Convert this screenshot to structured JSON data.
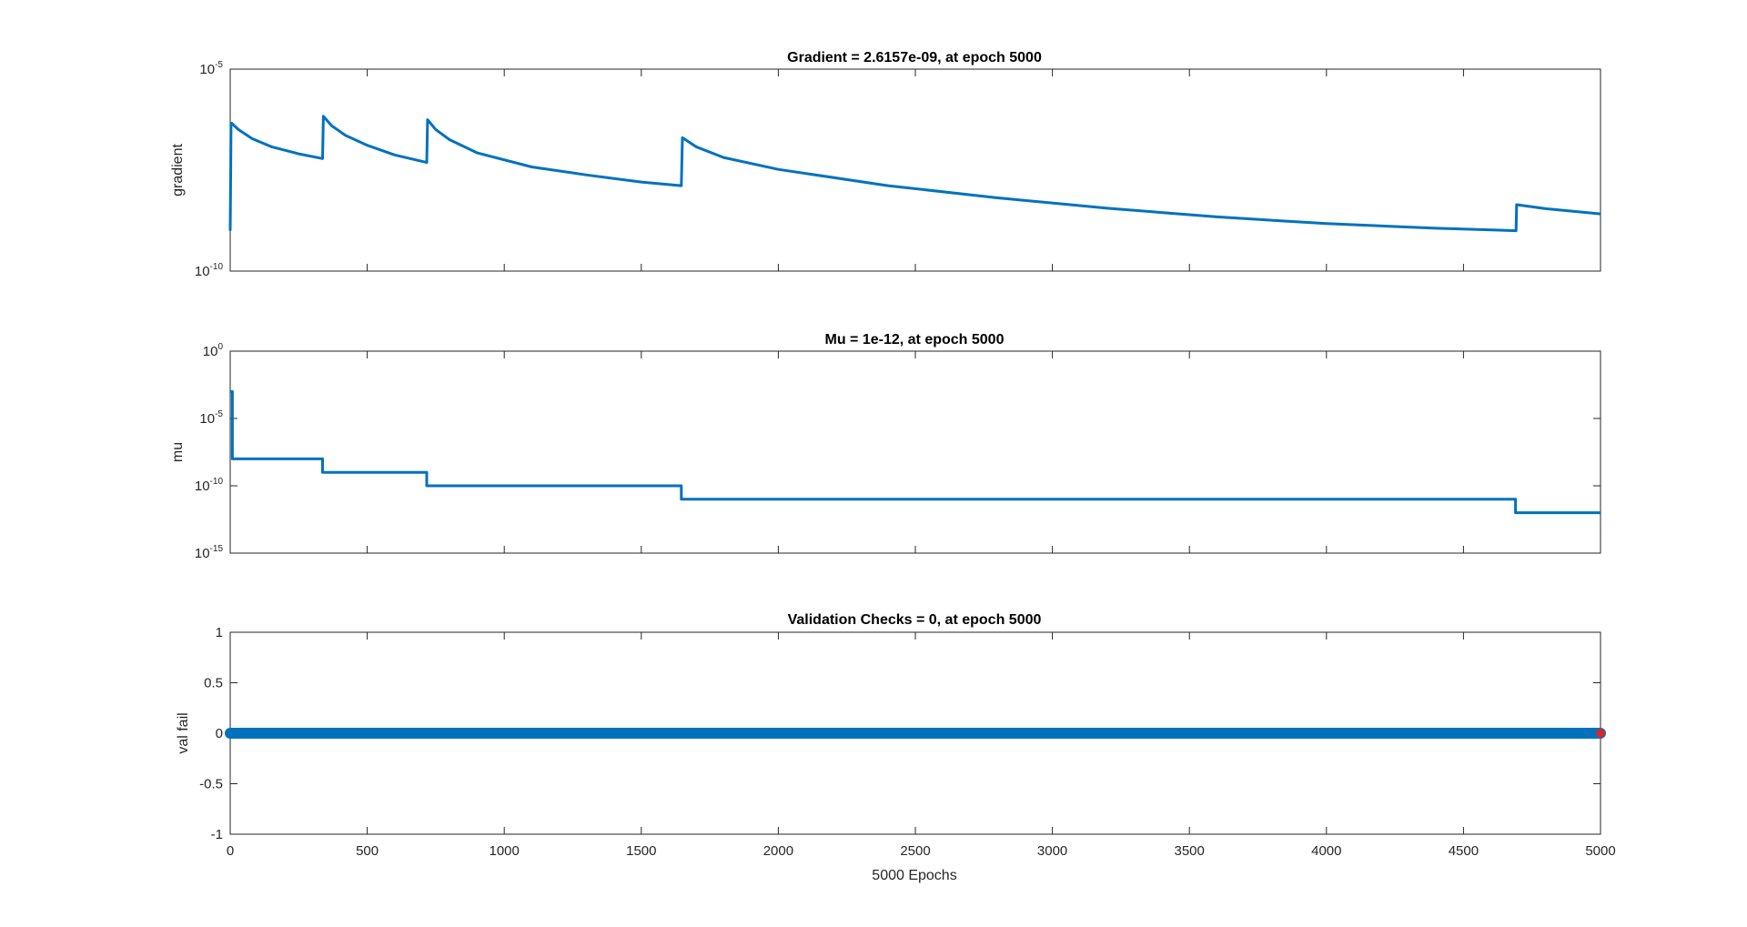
{
  "colors": {
    "line": "#0072BD",
    "marker_end": "#D62728",
    "axes": "#262626"
  },
  "chart_data": [
    {
      "type": "line",
      "title": "Gradient = 2.6157e-09, at epoch 5000",
      "ylabel": "gradient",
      "xlabel": "",
      "yscale": "log",
      "xlim": [
        0,
        5000
      ],
      "ylim": [
        1e-10,
        1e-05
      ],
      "yticks": [
        {
          "base": "10",
          "exp": "-10",
          "value": 1e-10
        },
        {
          "base": "10",
          "exp": "-5",
          "value": 1e-05
        }
      ],
      "xticks": [
        0,
        500,
        1000,
        1500,
        2000,
        2500,
        3000,
        3500,
        4000,
        4500,
        5000
      ],
      "show_xtick_labels": false,
      "series": [
        {
          "x": [
            0,
            2,
            3,
            5,
            30,
            80,
            150,
            250,
            337,
            340,
            370,
            420,
            500,
            600,
            717,
            720,
            750,
            800,
            900,
            1100,
            1300,
            1500,
            1646,
            1650,
            1700,
            1800,
            2000,
            2400,
            2800,
            3200,
            3600,
            4000,
            4400,
            4690,
            4692,
            4694,
            4800,
            5000
          ],
          "y": [
            1e-09,
            3.8e-08,
            4.6e-07,
            4.6e-07,
            3.2e-07,
            1.9e-07,
            1.2e-07,
            8e-08,
            6.1e-08,
            6.8e-07,
            4e-07,
            2.3e-07,
            1.3e-07,
            7.5e-08,
            4.9e-08,
            5.6e-07,
            3.2e-07,
            1.8e-07,
            8.5e-08,
            3.8e-08,
            2.4e-08,
            1.6e-08,
            1.3e-08,
            2e-07,
            1.2e-07,
            6.5e-08,
            3.3e-08,
            1.3e-08,
            6.5e-09,
            3.6e-09,
            2.2e-09,
            1.5e-09,
            1.15e-09,
            1e-09,
            1e-09,
            4.4e-09,
            3.5e-09,
            2.6157e-09
          ]
        }
      ]
    },
    {
      "type": "line",
      "title": "Mu = 1e-12, at epoch 5000",
      "ylabel": "mu",
      "xlabel": "",
      "yscale": "log",
      "xlim": [
        0,
        5000
      ],
      "ylim": [
        1e-15,
        1
      ],
      "yticks": [
        {
          "base": "10",
          "exp": "-15",
          "value": 1e-15
        },
        {
          "base": "10",
          "exp": "-10",
          "value": 1e-10
        },
        {
          "base": "10",
          "exp": "-5",
          "value": 1e-05
        },
        {
          "base": "10",
          "exp": "0",
          "value": 1
        }
      ],
      "xticks": [
        0,
        500,
        1000,
        1500,
        2000,
        2500,
        3000,
        3500,
        4000,
        4500,
        5000
      ],
      "show_xtick_labels": false,
      "series": [
        {
          "x": [
            0,
            8,
            8,
            337,
            337,
            717,
            717,
            1646,
            1646,
            4690,
            4690,
            5000
          ],
          "y": [
            0.001,
            0.001,
            1e-08,
            1e-08,
            1e-09,
            1e-09,
            1e-10,
            1e-10,
            1e-11,
            1e-11,
            1e-12,
            1e-12
          ]
        }
      ]
    },
    {
      "type": "scatter",
      "title": "Validation Checks = 0, at epoch 5000",
      "ylabel": "val fail",
      "xlabel": "5000 Epochs",
      "yscale": "linear",
      "xlim": [
        0,
        5000
      ],
      "ylim": [
        -1,
        1
      ],
      "yticks": [
        {
          "label": "-1",
          "value": -1
        },
        {
          "label": "-0.5",
          "value": -0.5
        },
        {
          "label": "0",
          "value": 0
        },
        {
          "label": "0.5",
          "value": 0.5
        },
        {
          "label": "1",
          "value": 1
        }
      ],
      "xticks": [
        0,
        500,
        1000,
        1500,
        2000,
        2500,
        3000,
        3500,
        4000,
        4500,
        5000
      ],
      "show_xtick_labels": true,
      "series": [
        {
          "x_range": [
            0,
            5000
          ],
          "value": 0
        }
      ],
      "best_point": {
        "x": 5000,
        "y": 0
      }
    }
  ]
}
